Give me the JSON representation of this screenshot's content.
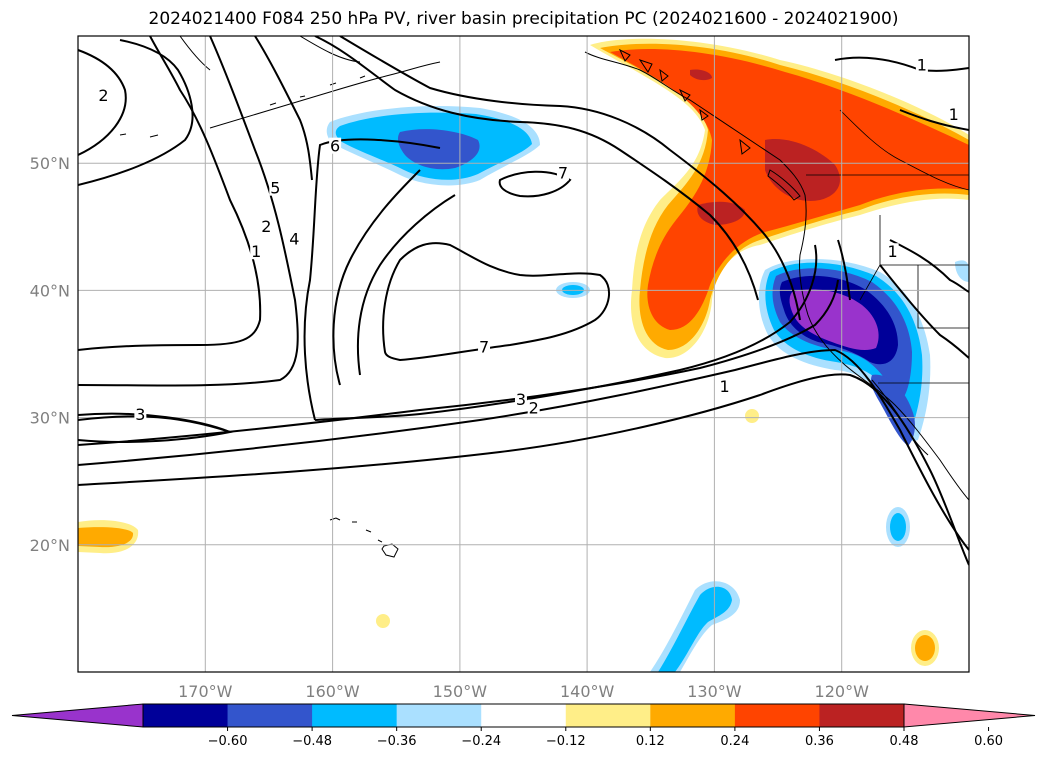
{
  "title": "2024021400 F084 250 hPa PV, river basin precipitation PC (2024021600 - 2024021900)",
  "map": {
    "lon_range": [
      -180,
      -110
    ],
    "lat_range": [
      10,
      60
    ],
    "lon_ticks": [
      {
        "value": -170,
        "label": "170°W"
      },
      {
        "value": -160,
        "label": "160°W"
      },
      {
        "value": -150,
        "label": "150°W"
      },
      {
        "value": -140,
        "label": "140°W"
      },
      {
        "value": -130,
        "label": "130°W"
      },
      {
        "value": -120,
        "label": "120°W"
      }
    ],
    "lat_ticks": [
      {
        "value": 50,
        "label": "50°N"
      },
      {
        "value": 40,
        "label": "40°N"
      },
      {
        "value": 30,
        "label": "30°N"
      },
      {
        "value": 20,
        "label": "20°N"
      }
    ],
    "grid": true,
    "contour_labels": [
      {
        "text": "2",
        "lon": -178,
        "lat": 55.3
      },
      {
        "text": "6",
        "lon": -159.8,
        "lat": 51.3
      },
      {
        "text": "7",
        "lon": -141.9,
        "lat": 49.2
      },
      {
        "text": "5",
        "lon": -164.5,
        "lat": 48.0
      },
      {
        "text": "2",
        "lon": -165.2,
        "lat": 45.0
      },
      {
        "text": "4",
        "lon": -163.0,
        "lat": 44.0
      },
      {
        "text": "1",
        "lon": -166.0,
        "lat": 43.0
      },
      {
        "text": "7",
        "lon": -148.1,
        "lat": 35.5
      },
      {
        "text": "3",
        "lon": -145.2,
        "lat": 31.4
      },
      {
        "text": "2",
        "lon": -144.2,
        "lat": 30.7
      },
      {
        "text": "1",
        "lon": -129.2,
        "lat": 32.4
      },
      {
        "text": "3",
        "lon": -175.1,
        "lat": 30.2
      },
      {
        "text": "1",
        "lon": -113.7,
        "lat": 57.7
      },
      {
        "text": "1",
        "lon": -111.2,
        "lat": 53.8
      },
      {
        "text": "1",
        "lon": -116.0,
        "lat": 43.0
      }
    ]
  },
  "colorbar": {
    "colors": [
      "#9933cc",
      "#000099",
      "#3355cc",
      "#00bbff",
      "#aae0ff",
      "#ffffff",
      "#ffee88",
      "#ffaa00",
      "#ff4400",
      "#bb2222",
      "#ff88aa"
    ],
    "tick_labels": [
      "−0.60",
      "−0.48",
      "−0.36",
      "−0.24",
      "−0.12",
      "0.12",
      "0.24",
      "0.36",
      "0.48",
      "0.60"
    ]
  },
  "legend_colors": {
    "neg_strong": "#9933cc",
    "neg_navy": "#000099",
    "neg_blue": "#3355cc",
    "neg_cyan": "#00bbff",
    "neg_light": "#aae0ff",
    "pos_yellow": "#ffee88",
    "pos_orange": "#ffaa00",
    "pos_redorange": "#ff4400",
    "pos_darkred": "#bb2222"
  }
}
